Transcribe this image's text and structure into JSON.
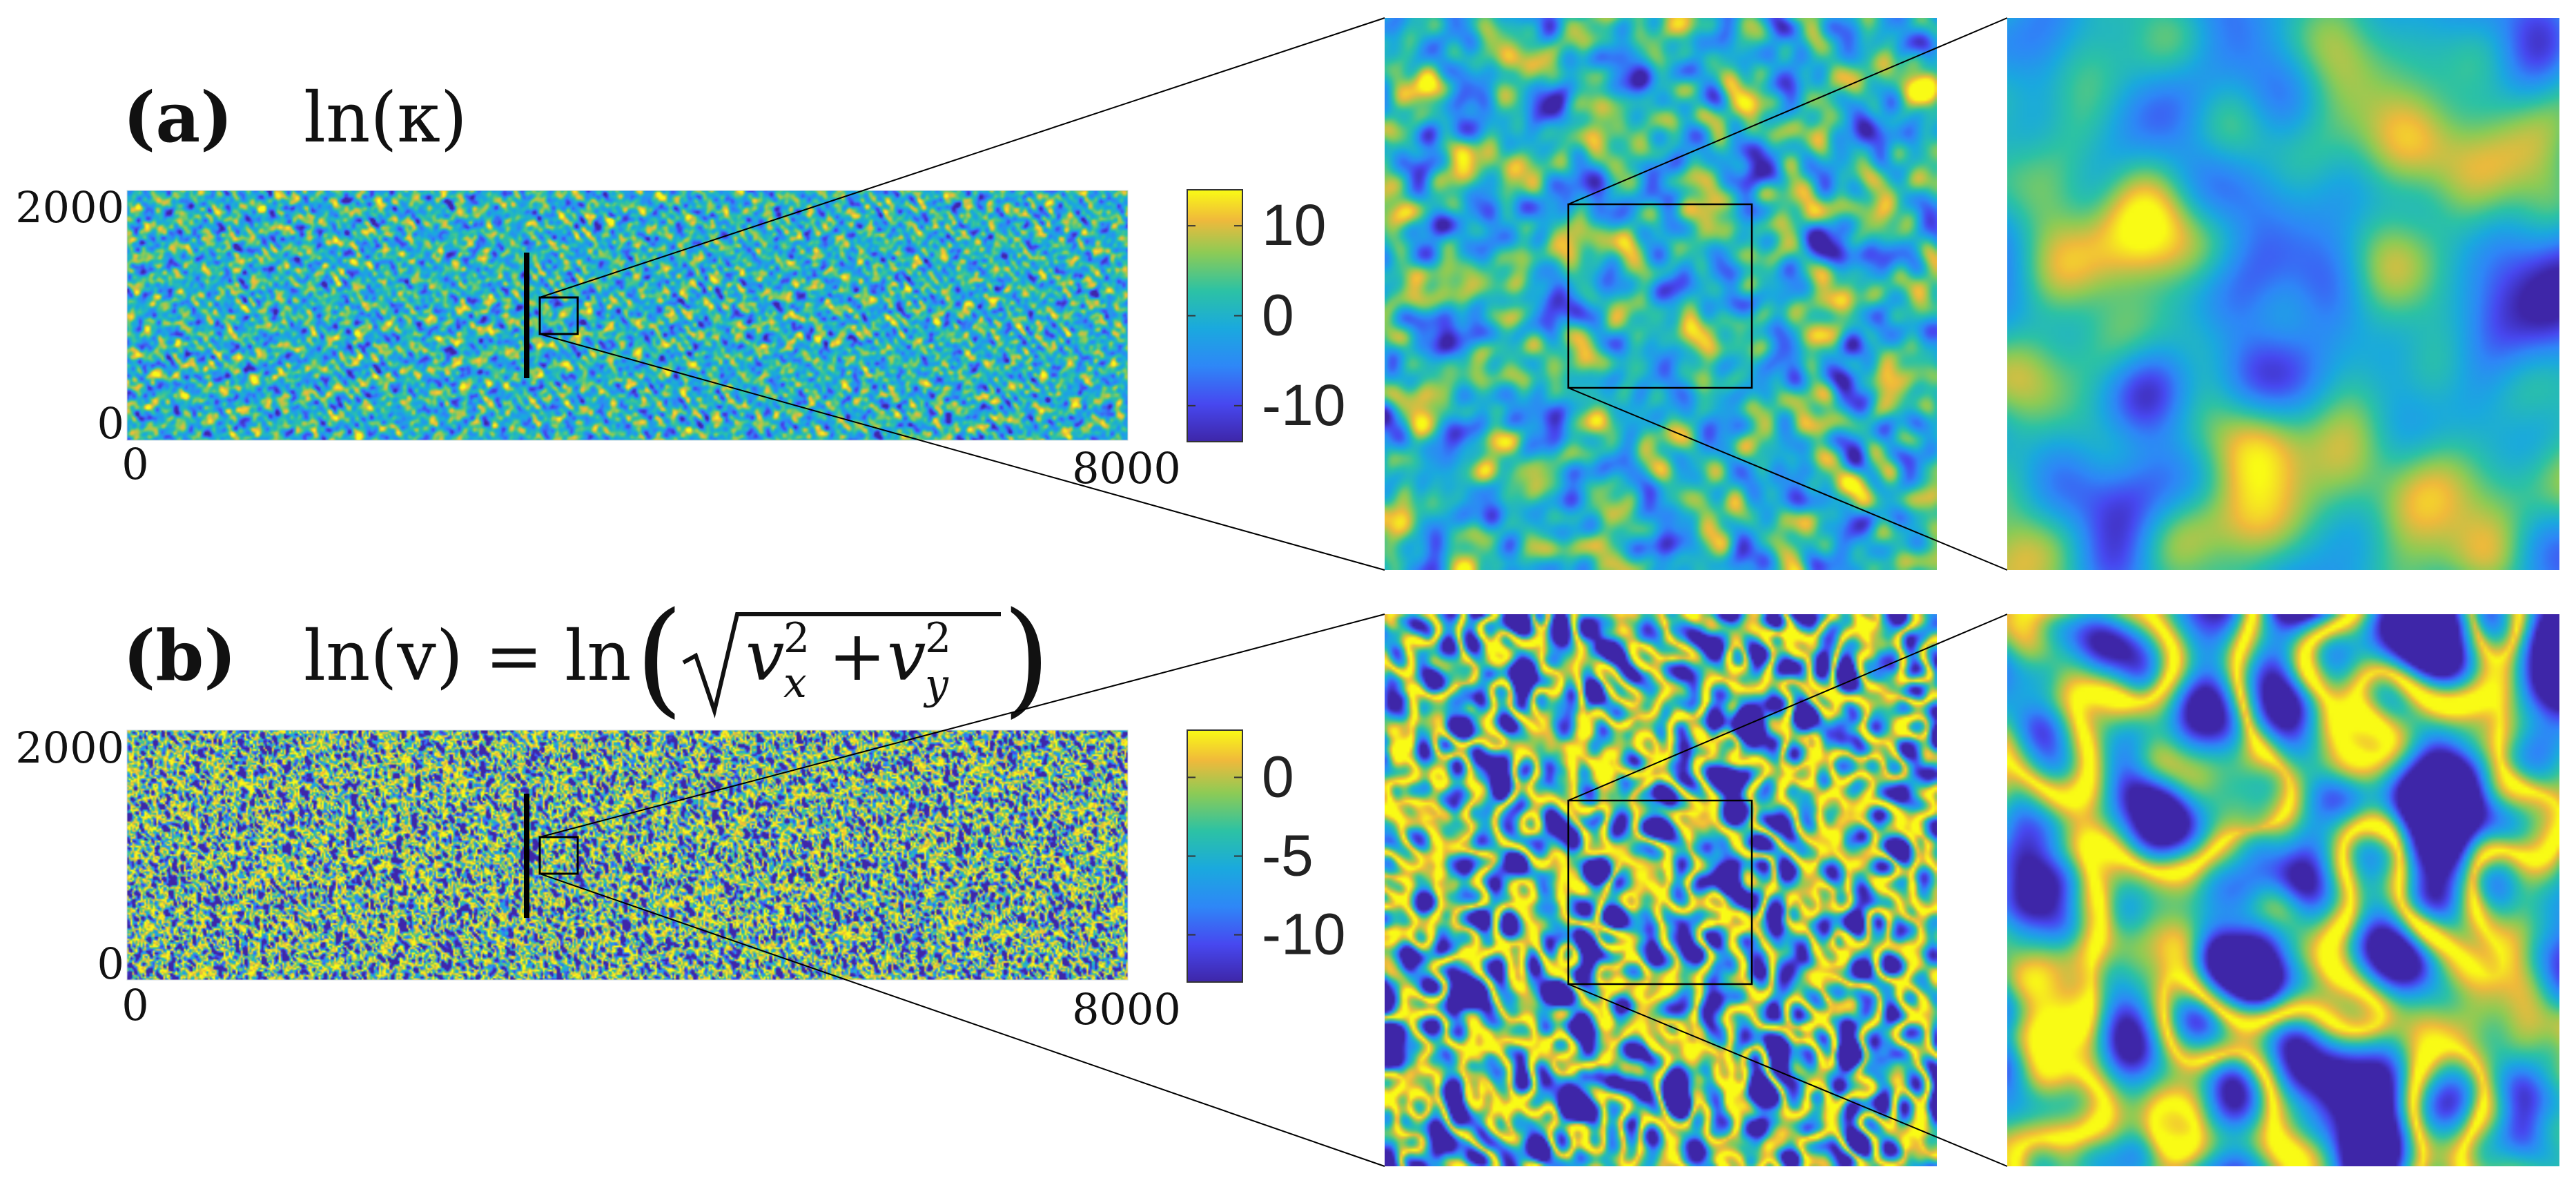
{
  "chart_data": [
    {
      "type": "heatmap",
      "panel": "(a)",
      "title_label": "(a)",
      "title_expr": "ln(κ)",
      "xlim": [
        0,
        8000
      ],
      "ylim": [
        0,
        2000
      ],
      "x_ticks": [
        "0",
        "8000"
      ],
      "y_ticks": [
        "2000",
        "0"
      ],
      "colorbar": {
        "ticks": [
          10,
          0,
          -10
        ],
        "tick_labels": [
          "10",
          "0",
          "-10"
        ],
        "range": [
          -14,
          14
        ]
      },
      "colormap": "parula",
      "colors": {
        "low": "#3e26a8",
        "mid": "#2cb5c0",
        "high": "#f9fb15"
      },
      "texture": {
        "mean": 0,
        "spread": 5.5,
        "smoothness": "fine",
        "channels": false
      }
    },
    {
      "type": "heatmap",
      "panel": "(b)",
      "title_label": "(b)",
      "title_expr": "ln(v) = ln( √(v_x² + v_y²) )",
      "xlim": [
        0,
        8000
      ],
      "ylim": [
        0,
        2000
      ],
      "x_ticks": [
        "0",
        "8000"
      ],
      "y_ticks": [
        "2000",
        "0"
      ],
      "colorbar": {
        "ticks": [
          0,
          -5,
          -10
        ],
        "tick_labels": [
          "0",
          "-5",
          "-10"
        ],
        "range": [
          -13,
          3
        ]
      },
      "colormap": "parula",
      "colors": {
        "low": "#3e26a8",
        "mid": "#2cb5c0",
        "high": "#f9fb15"
      },
      "texture": {
        "mean": -2.5,
        "spread": 3.5,
        "smoothness": "fine",
        "channels": true
      }
    }
  ],
  "labels": {
    "a_label": "(a)",
    "a_expr": "ln(κ)",
    "b_label": "(b)",
    "b_ln_v": "ln(v) = ln",
    "b_vx": "v",
    "b_vx_sup": "2",
    "b_vx_sub": "x",
    "b_plus": "+",
    "b_vy": "v",
    "b_vy_sup": "2",
    "b_vy_sub": "y"
  }
}
